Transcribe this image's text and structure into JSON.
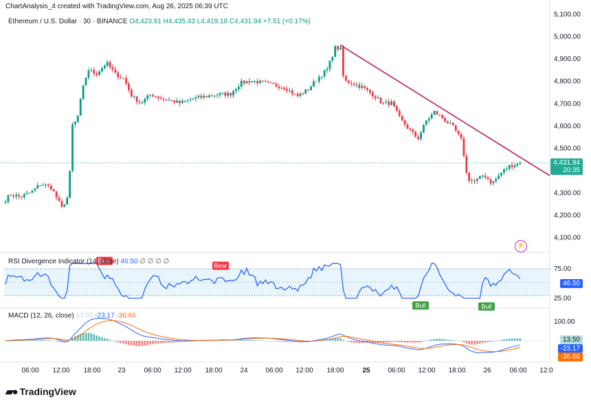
{
  "header": {
    "created_by": "ChartAnalysis_4 created with TradingView.com, Aug 26, 2025 06:39 UTC",
    "symbol": "Ethereum / U.S. Dollar · 30 · BINANCE",
    "open": "O4,423.81",
    "high": "H4,435.43",
    "low": "L4,419.18",
    "close": "C4,431.94",
    "change": "+7.51 (+0.17%)"
  },
  "logo": {
    "text": "TradingView",
    "icon": "tradingview-logo-icon"
  },
  "price_tag": {
    "price": "4,431.94",
    "countdown": "20:35",
    "color": "#22ab94"
  },
  "rsi": {
    "title": "RSI Divergence Indicator (14, close)",
    "value": "46.50",
    "extra": "∅ ∅ ∅ ∅",
    "levels": [
      "75.00",
      "25.00"
    ],
    "value_tag": "46.50",
    "labels": [
      {
        "text": "Bear",
        "type": "bear",
        "x_index": 140,
        "y": 77
      },
      {
        "text": "Bear",
        "type": "bear",
        "x_index": 309,
        "y": 68
      },
      {
        "text": "Bull",
        "type": "bull",
        "x_index": 600,
        "y": 22
      },
      {
        "text": "Bull",
        "type": "bull",
        "x_index": 696,
        "y": 20
      }
    ]
  },
  "macd": {
    "title": "MACD (12, 26, close)",
    "hist_value": "13.50",
    "macd_value": "-23.17",
    "signal_value": "-36.66",
    "axis_label": "100.00",
    "colors": {
      "macd": "#2962ff",
      "signal": "#ff6d00",
      "hist_up": "#26a69a",
      "hist_down": "#ef5350"
    }
  },
  "chart_data": {
    "type": "candlestick",
    "price_axis": [
      "5,100.00",
      "5,000.00",
      "4,900.00",
      "4,800.00",
      "4,700.00",
      "4,600.00",
      "4,500.00",
      "4,300.00",
      "4,200.00",
      "4,100.00"
    ],
    "ylim": [
      4050,
      5100
    ],
    "time_axis": [
      "06:00",
      "12:00",
      "18:00",
      "23",
      "06:00",
      "12:00",
      "18:00",
      "24",
      "06:00",
      "12:00",
      "18:00",
      "25",
      "06:00",
      "12:00",
      "18:00",
      "26",
      "06:00",
      "12:0"
    ],
    "trendline": {
      "from": 4960,
      "to": 4375
    },
    "last_price": 4431.94,
    "anchors": [
      [
        0,
        4240
      ],
      [
        15,
        4290
      ],
      [
        30,
        4280
      ],
      [
        45,
        4300
      ],
      [
        60,
        4340
      ],
      [
        75,
        4320
      ],
      [
        90,
        4230
      ],
      [
        100,
        4290
      ],
      [
        105,
        4600
      ],
      [
        112,
        4620
      ],
      [
        120,
        4760
      ],
      [
        128,
        4850
      ],
      [
        140,
        4830
      ],
      [
        155,
        4880
      ],
      [
        168,
        4830
      ],
      [
        180,
        4810
      ],
      [
        192,
        4730
      ],
      [
        205,
        4700
      ],
      [
        220,
        4740
      ],
      [
        235,
        4720
      ],
      [
        250,
        4710
      ],
      [
        262,
        4700
      ],
      [
        280,
        4720
      ],
      [
        300,
        4730
      ],
      [
        320,
        4740
      ],
      [
        335,
        4740
      ],
      [
        350,
        4790
      ],
      [
        365,
        4800
      ],
      [
        385,
        4790
      ],
      [
        400,
        4780
      ],
      [
        415,
        4770
      ],
      [
        432,
        4730
      ],
      [
        448,
        4760
      ],
      [
        462,
        4810
      ],
      [
        476,
        4850
      ],
      [
        488,
        4950
      ],
      [
        496,
        4940
      ],
      [
        500,
        4800
      ],
      [
        512,
        4790
      ],
      [
        528,
        4770
      ],
      [
        542,
        4740
      ],
      [
        556,
        4700
      ],
      [
        570,
        4700
      ],
      [
        582,
        4630
      ],
      [
        596,
        4580
      ],
      [
        608,
        4540
      ],
      [
        620,
        4620
      ],
      [
        632,
        4660
      ],
      [
        645,
        4630
      ],
      [
        660,
        4590
      ],
      [
        672,
        4530
      ],
      [
        680,
        4360
      ],
      [
        692,
        4350
      ],
      [
        704,
        4380
      ],
      [
        716,
        4340
      ],
      [
        730,
        4390
      ],
      [
        742,
        4420
      ],
      [
        760,
        4431.94
      ]
    ]
  }
}
